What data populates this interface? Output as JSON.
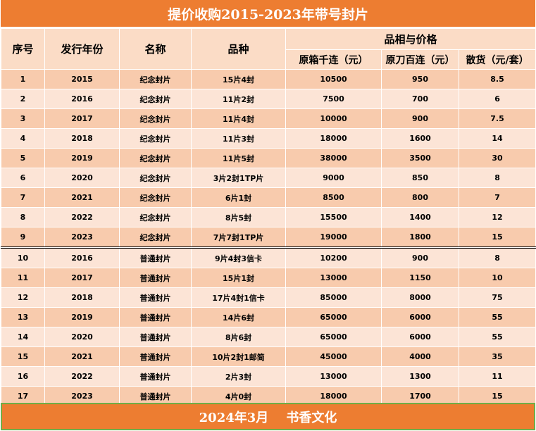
{
  "title": "提价收购2015-2023年带号封片",
  "headers": {
    "seq": "序号",
    "year": "发行年份",
    "name": "名称",
    "variety": "品种",
    "group": "品相与价格",
    "box": "原箱千连（元）",
    "knife": "原刀百连（元）",
    "loose": "散货（元/套）"
  },
  "rows": [
    {
      "seq": "1",
      "year": "2015",
      "name": "纪念封片",
      "variety": "15片4封",
      "box": "10500",
      "knife": "950",
      "loose": "8.5"
    },
    {
      "seq": "2",
      "year": "2016",
      "name": "纪念封片",
      "variety": "11片2封",
      "box": "7500",
      "knife": "700",
      "loose": "6"
    },
    {
      "seq": "3",
      "year": "2017",
      "name": "纪念封片",
      "variety": "11片4封",
      "box": "10000",
      "knife": "900",
      "loose": "7.5"
    },
    {
      "seq": "4",
      "year": "2018",
      "name": "纪念封片",
      "variety": "11片3封",
      "box": "18000",
      "knife": "1600",
      "loose": "14"
    },
    {
      "seq": "5",
      "year": "2019",
      "name": "纪念封片",
      "variety": "11片5封",
      "box": "38000",
      "knife": "3500",
      "loose": "30"
    },
    {
      "seq": "6",
      "year": "2020",
      "name": "纪念封片",
      "variety": "3片2封1TP片",
      "box": "9000",
      "knife": "850",
      "loose": "8"
    },
    {
      "seq": "7",
      "year": "2021",
      "name": "纪念封片",
      "variety": "6片1封",
      "box": "8500",
      "knife": "800",
      "loose": "7"
    },
    {
      "seq": "8",
      "year": "2022",
      "name": "纪念封片",
      "variety": "8片5封",
      "box": "15500",
      "knife": "1400",
      "loose": "12"
    },
    {
      "seq": "9",
      "year": "2023",
      "name": "纪念封片",
      "variety": "7片7封1TP片",
      "box": "19000",
      "knife": "1800",
      "loose": "15"
    },
    {
      "seq": "10",
      "year": "2016",
      "name": "普通封片",
      "variety": "9片4封3信卡",
      "box": "10200",
      "knife": "900",
      "loose": "8"
    },
    {
      "seq": "11",
      "year": "2017",
      "name": "普通封片",
      "variety": "15片1封",
      "box": "13000",
      "knife": "1150",
      "loose": "10"
    },
    {
      "seq": "12",
      "year": "2018",
      "name": "普通封片",
      "variety": "17片4封1信卡",
      "box": "85000",
      "knife": "8000",
      "loose": "75"
    },
    {
      "seq": "13",
      "year": "2019",
      "name": "普通封片",
      "variety": "14片6封",
      "box": "65000",
      "knife": "6000",
      "loose": "55"
    },
    {
      "seq": "14",
      "year": "2020",
      "name": "普通封片",
      "variety": "8片6封",
      "box": "65000",
      "knife": "6000",
      "loose": "55"
    },
    {
      "seq": "15",
      "year": "2021",
      "name": "普通封片",
      "variety": "10片2封1邮简",
      "box": "45000",
      "knife": "4000",
      "loose": "35"
    },
    {
      "seq": "16",
      "year": "2022",
      "name": "普通封片",
      "variety": "2片3封",
      "box": "13000",
      "knife": "1300",
      "loose": "11"
    },
    {
      "seq": "17",
      "year": "2023",
      "name": "普通封片",
      "variety": "4片0封",
      "box": "18000",
      "knife": "1700",
      "loose": "15"
    }
  ],
  "footer": "2024年3月    书香文化"
}
